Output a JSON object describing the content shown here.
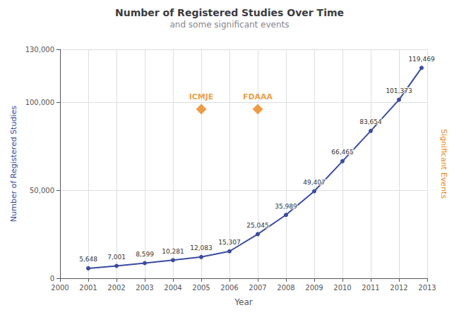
{
  "chart_data": {
    "type": "line",
    "title": "Number of Registered Studies Over Time",
    "subtitle": "and some significant events",
    "xlabel": "Year",
    "ylabel": "Number of Registered Studies",
    "y2label": "Significant Events",
    "x": [
      2001,
      2002,
      2003,
      2004,
      2005,
      2006,
      2007,
      2008,
      2009,
      2010,
      2011,
      2012,
      2012.8
    ],
    "values": [
      5648,
      7001,
      8599,
      10281,
      12083,
      15307,
      25045,
      35989,
      49407,
      66465,
      83654,
      101373,
      119469
    ],
    "value_labels": [
      "5,648",
      "7,001",
      "8,599",
      "10,281",
      "12,083",
      "15,307",
      "25,045",
      "35,989",
      "49,407",
      "66,465",
      "83,654",
      "101,373",
      "119,469"
    ],
    "data_labels": true,
    "color": "#3B4CA0",
    "marker": "circle",
    "xlim": [
      2000,
      2013
    ],
    "xticks": [
      2000,
      2001,
      2002,
      2003,
      2004,
      2005,
      2006,
      2007,
      2008,
      2009,
      2010,
      2011,
      2012,
      2013
    ],
    "ylim": [
      0,
      130000
    ],
    "yticks": [
      0,
      {
        "value": 50000,
        "label": "50,000"
      },
      {
        "value": 100000,
        "label": "100,000"
      },
      {
        "value": 130000,
        "label": "130,000"
      }
    ],
    "grid": true,
    "annotations": [
      {
        "text": "ICMJE",
        "x": 2005,
        "y": 96000,
        "marker": "diamond",
        "color": "#E8861A"
      },
      {
        "text": "FDAAA",
        "x": 2007,
        "y": 96000,
        "marker": "diamond",
        "color": "#E8861A"
      }
    ]
  }
}
